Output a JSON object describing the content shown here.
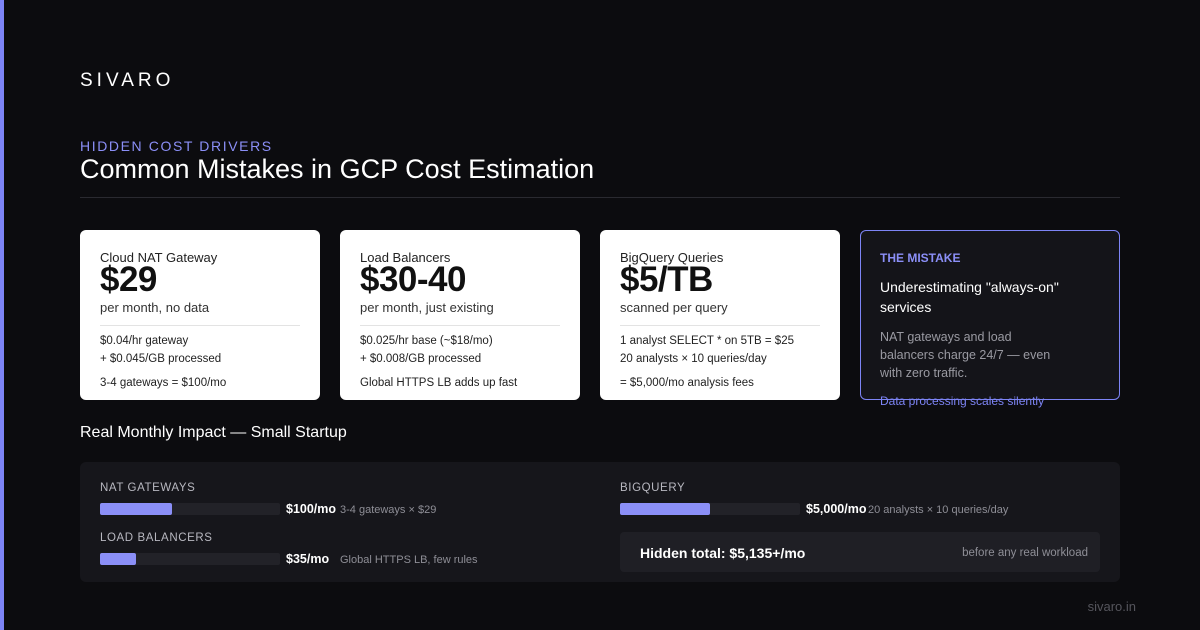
{
  "brand": "SIVARO",
  "eyebrow": "HIDDEN COST DRIVERS",
  "title": "Common Mistakes in GCP Cost Estimation",
  "cards": [
    {
      "title": "Cloud NAT Gateway",
      "big": "$29",
      "sub": "per month, no data",
      "line1": "$0.04/hr gateway",
      "line2": "+ $0.045/GB processed",
      "line3": "3-4 gateways = $100/mo"
    },
    {
      "title": "Load Balancers",
      "big": "$30-40",
      "sub": "per month, just existing",
      "line1": "$0.025/hr base (~$18/mo)",
      "line2": "+ $0.008/GB processed",
      "line3": "Global HTTPS LB adds up fast"
    },
    {
      "title": "BigQuery Queries",
      "big": "$5/TB",
      "sub": "scanned per query",
      "line1": "1 analyst SELECT * on 5TB = $25",
      "line2": "20 analysts × 10 queries/day",
      "line3": "= $5,000/mo analysis fees"
    }
  ],
  "mistake": {
    "label": "THE MISTAKE",
    "headline": "Underestimating \"always-on\" services",
    "body": "NAT gateways and load balancers charge 24/7 — even with zero traffic.",
    "footnote": "Data processing scales silently"
  },
  "impact": {
    "title": "Real Monthly Impact — Small Startup",
    "items": [
      {
        "label": "NAT GATEWAYS",
        "amount": "$100/mo",
        "note": "3-4 gateways × $29",
        "fill": 0.4
      },
      {
        "label": "LOAD BALANCERS",
        "amount": "$35/mo",
        "note": "Global HTTPS LB, few rules",
        "fill": 0.2
      },
      {
        "label": "BIGQUERY",
        "amount": "$5,000/mo",
        "note": "20 analysts × 10 queries/day",
        "fill": 0.5
      }
    ],
    "total": "Hidden total: $5,135+/mo",
    "total_note": "before any real workload"
  },
  "colors": {
    "accent": "#8b8ff7",
    "background": "#0c0c0f",
    "card": "#ffffff"
  },
  "footer": "sivaro.in"
}
